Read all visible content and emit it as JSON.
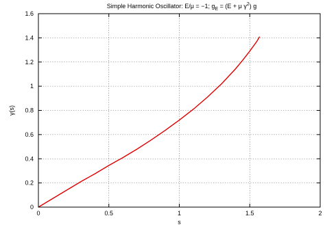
{
  "chart_data": {
    "type": "line",
    "title": {
      "prefix": "Simple Harmonic Oscillator: E/μ = −1; g",
      "sub": "E",
      "middle": " = (E + μ γ",
      "sup": "2",
      "suffix": ") g"
    },
    "xlabel": "s",
    "ylabel": "γ(s)",
    "xlim": [
      0,
      2
    ],
    "ylim": [
      0,
      1.6
    ],
    "xticks": [
      0,
      0.5,
      1,
      1.5,
      2
    ],
    "xtick_labels": [
      "0",
      "0.5",
      "1",
      "1.5",
      "2"
    ],
    "yticks": [
      0,
      0.2,
      0.4,
      0.6,
      0.8,
      1,
      1.2,
      1.4,
      1.6
    ],
    "ytick_labels": [
      "0",
      "0.2",
      "0.4",
      "0.6",
      "0.8",
      "1",
      "1.2",
      "1.4",
      "1.6"
    ],
    "grid": true,
    "series": [
      {
        "color": "#e00000",
        "x": [
          0,
          0.1,
          0.2,
          0.3,
          0.4,
          0.5,
          0.6,
          0.7,
          0.8,
          0.9,
          1.0,
          1.1,
          1.2,
          1.3,
          1.4,
          1.45,
          1.5,
          1.55,
          1.57
        ],
        "y": [
          0,
          0.07,
          0.14,
          0.21,
          0.275,
          0.345,
          0.41,
          0.48,
          0.555,
          0.635,
          0.72,
          0.81,
          0.91,
          1.02,
          1.145,
          1.215,
          1.29,
          1.37,
          1.41
        ]
      }
    ]
  }
}
